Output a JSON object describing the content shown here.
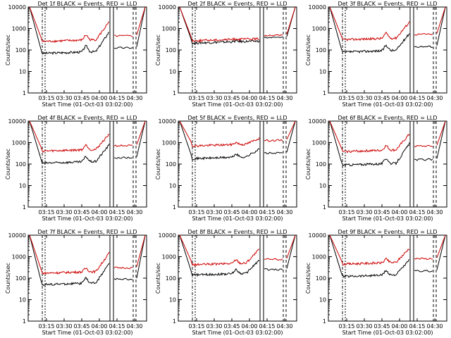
{
  "chart_data": [
    {
      "type": "line",
      "title": "Det 1f BLACK = Events, RED = LLD",
      "xlabel": "Start Time (01-Oct-03 03:02:00)",
      "ylabel": "Counts/sec",
      "yscale": "log",
      "ylim": [
        1,
        10000
      ],
      "xticks": [
        "03:15",
        "03:30",
        "03:45",
        "04:00",
        "04:15",
        "04:30"
      ],
      "yticks": [
        "1",
        "10",
        "100",
        "1000",
        "10000"
      ],
      "series": [
        {
          "name": "Events",
          "color": "#000000",
          "base": 70,
          "peak": 140,
          "end": 700
        },
        {
          "name": "LLD",
          "color": "#cc0000",
          "base": 250,
          "peak": 450,
          "end": 2000
        }
      ]
    },
    {
      "type": "line",
      "title": "Det 2f BLACK = Events, RED = LLD",
      "xlabel": "Start Time (01-Oct-03 03:02:00)",
      "ylabel": "Counts/sec",
      "yscale": "log",
      "ylim": [
        1,
        10000
      ],
      "xticks": [
        "03:15",
        "03:30",
        "03:45",
        "04:00",
        "04:15",
        "04:30"
      ],
      "yticks": [
        "1",
        "10",
        "100",
        "1000",
        "10000"
      ],
      "series": [
        {
          "name": "Events",
          "color": "#000000",
          "base": 210,
          "peak": 230,
          "end": 260
        },
        {
          "name": "LLD",
          "color": "#cc0000",
          "base": 270,
          "peak": 290,
          "end": 330
        }
      ]
    },
    {
      "type": "line",
      "title": "Det 3f BLACK = Events, RED = LLD",
      "xlabel": "Start Time (01-Oct-03 03:02:00)",
      "ylabel": "Counts/sec",
      "yscale": "log",
      "ylim": [
        1,
        10000
      ],
      "xticks": [
        "03:15",
        "03:30",
        "03:45",
        "04:00",
        "04:15",
        "04:30"
      ],
      "yticks": [
        "1",
        "10",
        "100",
        "1000",
        "10000"
      ],
      "series": [
        {
          "name": "Events",
          "color": "#000000",
          "base": 80,
          "peak": 150,
          "end": 600
        },
        {
          "name": "LLD",
          "color": "#cc0000",
          "base": 300,
          "peak": 550,
          "end": 2000
        }
      ]
    },
    {
      "type": "line",
      "title": "Det 4f BLACK = Events, RED = LLD",
      "xlabel": "Start Time (01-Oct-03 03:02:00)",
      "ylabel": "Counts/sec",
      "yscale": "log",
      "ylim": [
        1,
        10000
      ],
      "xticks": [
        "03:15",
        "03:30",
        "03:45",
        "04:00",
        "04:15",
        "04:30"
      ],
      "yticks": [
        "1",
        "10",
        "100",
        "1000",
        "10000"
      ],
      "series": [
        {
          "name": "Events",
          "color": "#000000",
          "base": 110,
          "peak": 200,
          "end": 800
        },
        {
          "name": "LLD",
          "color": "#cc0000",
          "base": 400,
          "peak": 700,
          "end": 2500
        }
      ]
    },
    {
      "type": "line",
      "title": "Det 5f BLACK = Events, RED = LLD",
      "xlabel": "Start Time (01-Oct-03 03:02:00)",
      "ylabel": "Counts/sec",
      "yscale": "log",
      "ylim": [
        1,
        10000
      ],
      "xticks": [
        "03:15",
        "03:30",
        "03:45",
        "04:00",
        "04:15",
        "04:30"
      ],
      "yticks": [
        "1",
        "10",
        "100",
        "1000",
        "10000"
      ],
      "series": [
        {
          "name": "Events",
          "color": "#000000",
          "base": 180,
          "peak": 260,
          "end": 500
        },
        {
          "name": "LLD",
          "color": "#cc0000",
          "base": 700,
          "peak": 900,
          "end": 1600
        }
      ]
    },
    {
      "type": "line",
      "title": "Det 6f BLACK = Events, RED = LLD",
      "xlabel": "Start Time (01-Oct-03 03:02:00)",
      "ylabel": "Counts/sec",
      "yscale": "log",
      "ylim": [
        1,
        10000
      ],
      "xticks": [
        "03:15",
        "03:30",
        "03:45",
        "04:00",
        "04:15",
        "04:30"
      ],
      "yticks": [
        "1",
        "10",
        "100",
        "1000",
        "10000"
      ],
      "series": [
        {
          "name": "Events",
          "color": "#000000",
          "base": 90,
          "peak": 170,
          "end": 900
        },
        {
          "name": "LLD",
          "color": "#cc0000",
          "base": 380,
          "peak": 650,
          "end": 2500
        }
      ]
    },
    {
      "type": "line",
      "title": "Det 7f BLACK = Events, RED = LLD",
      "xlabel": "Start Time (01-Oct-03 03:02:00)",
      "ylabel": "Counts/sec",
      "yscale": "log",
      "ylim": [
        1,
        10000
      ],
      "xticks": [
        "03:15",
        "03:30",
        "03:45",
        "04:00",
        "04:15",
        "04:30"
      ],
      "yticks": [
        "1",
        "10",
        "100",
        "1000",
        "10000"
      ],
      "series": [
        {
          "name": "Events",
          "color": "#000000",
          "base": 50,
          "peak": 90,
          "end": 500
        },
        {
          "name": "LLD",
          "color": "#cc0000",
          "base": 170,
          "peak": 260,
          "end": 1500
        }
      ]
    },
    {
      "type": "line",
      "title": "Det 8f BLACK = Events, RED = LLD",
      "xlabel": "Start Time (01-Oct-03 03:02:00)",
      "ylabel": "Counts/sec",
      "yscale": "log",
      "ylim": [
        1,
        10000
      ],
      "xticks": [
        "03:15",
        "03:30",
        "03:45",
        "04:00",
        "04:15",
        "04:30"
      ],
      "yticks": [
        "1",
        "10",
        "100",
        "1000",
        "10000"
      ],
      "series": [
        {
          "name": "Events",
          "color": "#000000",
          "base": 140,
          "peak": 230,
          "end": 700
        },
        {
          "name": "LLD",
          "color": "#cc0000",
          "base": 420,
          "peak": 650,
          "end": 2200
        }
      ]
    },
    {
      "type": "line",
      "title": "Det 9f BLACK = Events, RED = LLD",
      "xlabel": "Start Time (01-Oct-03 03:02:00)",
      "ylabel": "Counts/sec",
      "yscale": "log",
      "ylim": [
        1,
        10000
      ],
      "xticks": [
        "03:15",
        "03:30",
        "03:45",
        "04:00",
        "04:15",
        "04:30"
      ],
      "yticks": [
        "1",
        "10",
        "100",
        "1000",
        "10000"
      ],
      "series": [
        {
          "name": "Events",
          "color": "#000000",
          "base": 120,
          "peak": 200,
          "end": 700
        },
        {
          "name": "LLD",
          "color": "#cc0000",
          "base": 450,
          "peak": 700,
          "end": 2500
        }
      ]
    }
  ]
}
